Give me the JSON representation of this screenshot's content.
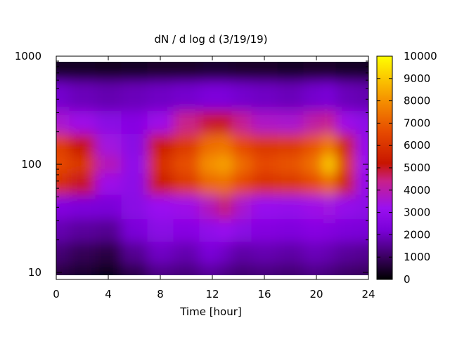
{
  "chart_data": {
    "type": "heatmap",
    "title": "dN / d log d (3/19/19)",
    "xlabel": "Time [hour]",
    "ylabel": "",
    "x_ticks": [
      0,
      4,
      8,
      12,
      16,
      20,
      24
    ],
    "xlim": [
      0,
      24
    ],
    "y_scale": "log",
    "y_ticks": [
      10,
      100,
      1000
    ],
    "ylim": [
      9,
      1000
    ],
    "colorbar": {
      "ticks": [
        0,
        1000,
        2000,
        3000,
        4000,
        5000,
        6000,
        7000,
        8000,
        9000,
        10000
      ],
      "range": [
        0,
        10000
      ],
      "palette": "black-purple-red-orange-yellow"
    },
    "grid": false,
    "legend": "colorbar-right",
    "time_hours": [
      0,
      2,
      4,
      6,
      8,
      10,
      12,
      13,
      14,
      16,
      18,
      20,
      21,
      22,
      24
    ],
    "diameter_rows": [
      10,
      15,
      25,
      40,
      70,
      100,
      150,
      250,
      400,
      900
    ],
    "values": [
      [
        700,
        500,
        300,
        800,
        1400,
        1300,
        1600,
        1400,
        1200,
        1300,
        1200,
        1400,
        1300,
        1100,
        1000
      ],
      [
        1200,
        900,
        700,
        1500,
        2000,
        1800,
        2200,
        2000,
        1700,
        1800,
        1700,
        1900,
        1800,
        1600,
        1500
      ],
      [
        1800,
        1600,
        1500,
        2200,
        2700,
        2600,
        2900,
        3200,
        2700,
        2500,
        2400,
        2600,
        2500,
        2300,
        2200
      ],
      [
        2500,
        2300,
        2200,
        2700,
        3200,
        3300,
        3800,
        4600,
        3600,
        3100,
        3000,
        3300,
        3400,
        3000,
        2800
      ],
      [
        5900,
        5000,
        3300,
        2800,
        5400,
        6200,
        7200,
        7400,
        6600,
        6000,
        6100,
        6600,
        7400,
        5500,
        3000
      ],
      [
        6600,
        6100,
        3900,
        2900,
        6000,
        6700,
        8000,
        8400,
        7300,
        6600,
        6800,
        7400,
        9200,
        6200,
        3200
      ],
      [
        6300,
        5200,
        3400,
        2700,
        5400,
        6200,
        7300,
        7500,
        6600,
        6100,
        6200,
        6800,
        7700,
        5500,
        3000
      ],
      [
        3600,
        3300,
        2700,
        2600,
        3300,
        4400,
        4900,
        5100,
        4300,
        3700,
        3600,
        4100,
        4400,
        3300,
        2800
      ],
      [
        2100,
        1900,
        1800,
        1900,
        2000,
        2100,
        2300,
        2300,
        2100,
        2000,
        1900,
        2100,
        2200,
        1900,
        1800
      ],
      [
        400,
        400,
        350,
        400,
        450,
        450,
        500,
        500,
        450,
        450,
        400,
        450,
        450,
        400,
        400
      ]
    ]
  }
}
